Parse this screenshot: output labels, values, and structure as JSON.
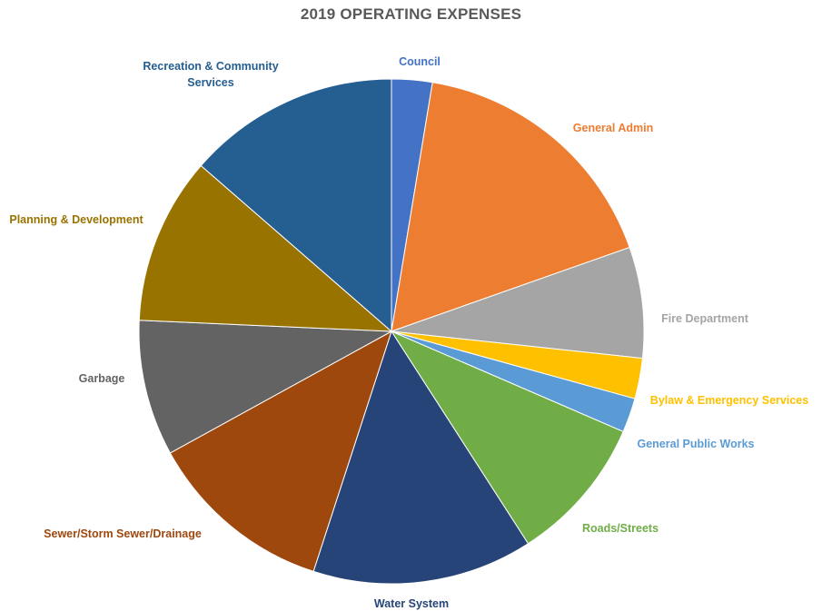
{
  "chart_data": {
    "type": "pie",
    "title": "2019 OPERATING EXPENSES",
    "slices": [
      {
        "label": "Council",
        "value": 2.6,
        "color": "#4472C4"
      },
      {
        "label": "General Admin",
        "value": 17.0,
        "color": "#ED7D31"
      },
      {
        "label": "Fire Department",
        "value": 7.1,
        "color": "#A5A5A5"
      },
      {
        "label": "Bylaw & Emergency Services",
        "value": 2.6,
        "color": "#FFC000"
      },
      {
        "label": "General Public Works",
        "value": 2.2,
        "color": "#5B9BD5"
      },
      {
        "label": "Roads/Streets",
        "value": 9.4,
        "color": "#70AD47"
      },
      {
        "label": "Water System",
        "value": 14.1,
        "color": "#264478"
      },
      {
        "label": "Sewer/Storm Sewer/Drainage",
        "value": 12.0,
        "color": "#9E480E"
      },
      {
        "label": "Garbage",
        "value": 8.7,
        "color": "#636363"
      },
      {
        "label": "Planning & Development",
        "value": 10.7,
        "color": "#997300"
      },
      {
        "label": "Recreation & Community Services",
        "value": 13.6,
        "color": "#255E91"
      }
    ]
  }
}
